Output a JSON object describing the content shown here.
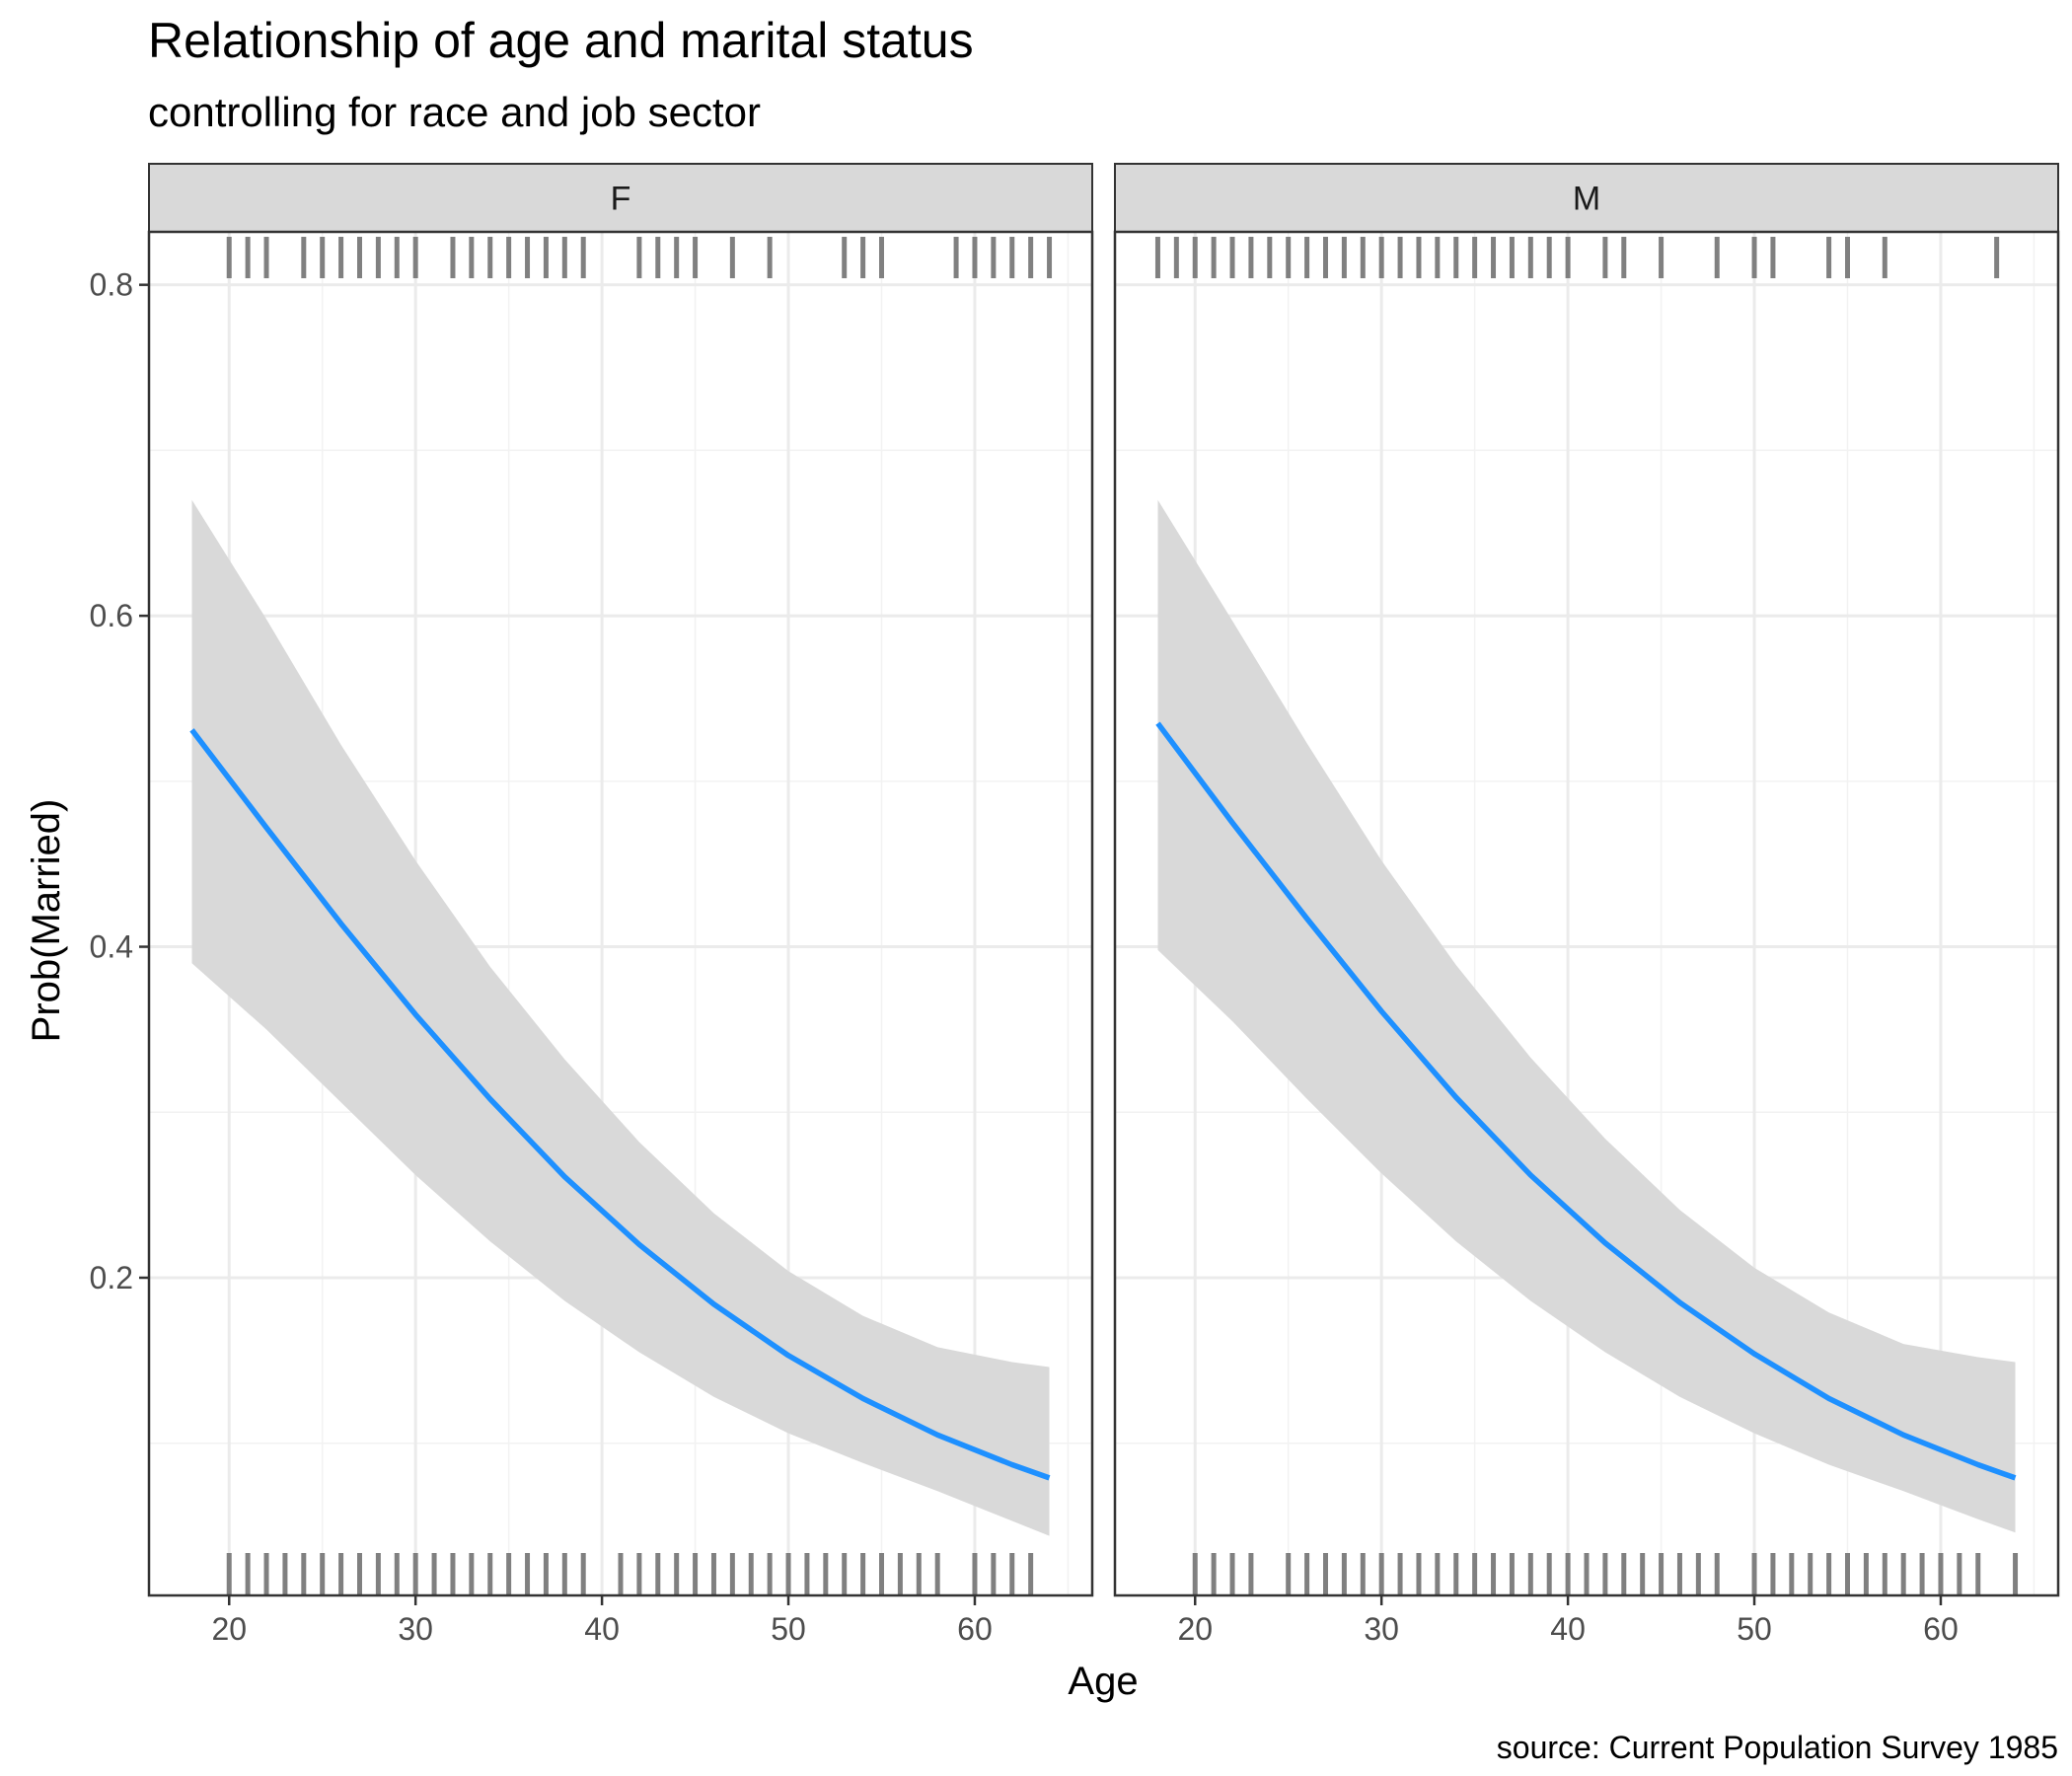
{
  "chart_data": {
    "type": "line",
    "title": "Relationship of age and marital status",
    "subtitle": "controlling for race and job sector",
    "xlabel": "Age",
    "ylabel": "Prob(Married)",
    "caption": "source: Current Population Survey 1985",
    "xlim": [
      15.7,
      66.3
    ],
    "ylim": [
      0.008,
      0.832
    ],
    "x_ticks": [
      20,
      30,
      40,
      50,
      60
    ],
    "x_tick_labels": [
      "20",
      "30",
      "40",
      "50",
      "60"
    ],
    "y_ticks": [
      0.2,
      0.4,
      0.6,
      0.8
    ],
    "y_tick_labels": [
      "0.2",
      "0.4",
      "0.6",
      "0.8"
    ],
    "grid": true,
    "line_color": "#1E90FF",
    "band_color": "#D9D9D9",
    "rug_color": "#808080",
    "panels": [
      {
        "label": "F",
        "x": [
          18,
          22,
          26,
          30,
          34,
          38,
          42,
          46,
          50,
          54,
          58,
          62,
          64
        ],
        "y": [
          0.531,
          0.472,
          0.414,
          0.359,
          0.308,
          0.261,
          0.22,
          0.184,
          0.153,
          0.127,
          0.105,
          0.087,
          0.079
        ],
        "lower": [
          0.39,
          0.35,
          0.306,
          0.262,
          0.222,
          0.186,
          0.155,
          0.128,
          0.106,
          0.088,
          0.071,
          0.053,
          0.044
        ],
        "upper": [
          0.67,
          0.598,
          0.522,
          0.452,
          0.388,
          0.332,
          0.282,
          0.239,
          0.204,
          0.177,
          0.158,
          0.149,
          0.146
        ],
        "rug_top": [
          20,
          21,
          22,
          24,
          25,
          26,
          27,
          28,
          29,
          30,
          32,
          33,
          34,
          35,
          36,
          37,
          38,
          39,
          42,
          43,
          44,
          45,
          47,
          49,
          53,
          54,
          55,
          59,
          60,
          61,
          62,
          63,
          64
        ],
        "rug_bottom": [
          20,
          21,
          22,
          23,
          24,
          25,
          26,
          27,
          28,
          29,
          30,
          31,
          32,
          33,
          34,
          35,
          36,
          37,
          38,
          39,
          41,
          42,
          43,
          44,
          45,
          46,
          47,
          48,
          49,
          50,
          51,
          52,
          53,
          54,
          55,
          56,
          57,
          58,
          60,
          61,
          62,
          63
        ]
      },
      {
        "label": "M",
        "x": [
          18,
          22,
          26,
          30,
          34,
          38,
          42,
          46,
          50,
          54,
          58,
          62,
          64
        ],
        "y": [
          0.535,
          0.475,
          0.417,
          0.361,
          0.309,
          0.262,
          0.221,
          0.185,
          0.154,
          0.127,
          0.105,
          0.087,
          0.079
        ],
        "lower": [
          0.398,
          0.355,
          0.308,
          0.263,
          0.222,
          0.186,
          0.155,
          0.128,
          0.106,
          0.087,
          0.071,
          0.054,
          0.046
        ],
        "upper": [
          0.67,
          0.597,
          0.523,
          0.452,
          0.389,
          0.333,
          0.284,
          0.241,
          0.206,
          0.179,
          0.16,
          0.152,
          0.149
        ],
        "rug_top": [
          18,
          19,
          20,
          21,
          22,
          23,
          24,
          25,
          26,
          27,
          28,
          29,
          30,
          31,
          32,
          33,
          34,
          35,
          36,
          37,
          38,
          39,
          40,
          42,
          43,
          45,
          48,
          50,
          51,
          54,
          55,
          57,
          63
        ],
        "rug_bottom": [
          20,
          21,
          22,
          23,
          25,
          26,
          27,
          28,
          29,
          30,
          31,
          32,
          33,
          34,
          35,
          36,
          37,
          38,
          39,
          40,
          41,
          42,
          43,
          44,
          45,
          46,
          47,
          48,
          50,
          51,
          52,
          53,
          54,
          55,
          56,
          57,
          58,
          59,
          60,
          61,
          62,
          64
        ]
      }
    ]
  }
}
